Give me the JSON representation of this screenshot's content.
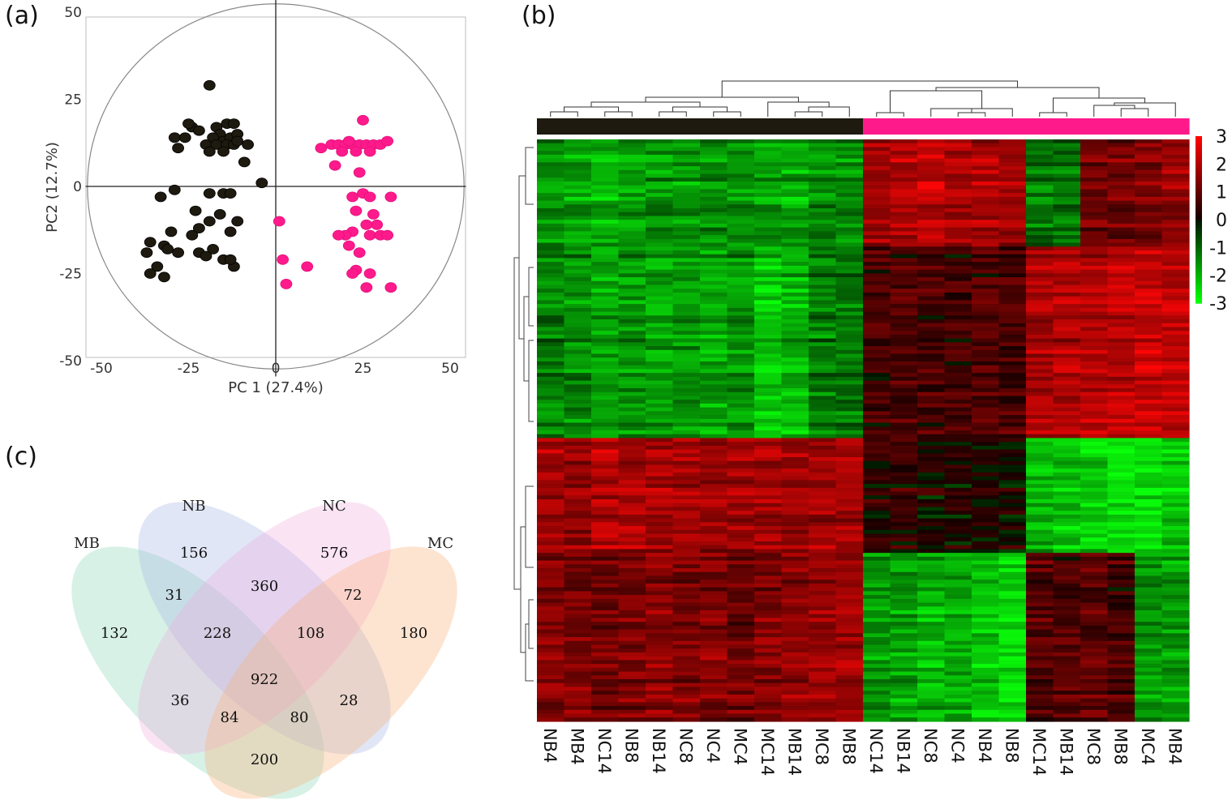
{
  "panels": {
    "a": "(a)",
    "b": "(b)",
    "c": "(c)"
  },
  "colors": {
    "group1": "#1e1a0f",
    "group2": "#ff1a8c",
    "hm_high": "#ff1a1a",
    "hm_low": "#1aff1a",
    "hm_mid": "#000000"
  },
  "chart_data": [
    {
      "type": "scatter",
      "title": "",
      "xlabel": "PC 1 (27.4%)",
      "ylabel": "PC2 (12.7%)",
      "xlim": [
        -55,
        55
      ],
      "ylim": [
        -55,
        55
      ],
      "xticks": [
        "-50",
        "-25",
        "0",
        "25",
        "50"
      ],
      "xtick_values": [
        -50,
        -25,
        0,
        25,
        50
      ],
      "yticks": [
        "50",
        "25",
        "0",
        "-25",
        "-50"
      ],
      "ytick_values": [
        50,
        25,
        0,
        -25,
        -50
      ],
      "ellipse_radius": 54,
      "series": [
        {
          "name": "group1",
          "color": "#1e1a0f",
          "points": [
            [
              -19,
              29
            ],
            [
              -24,
              17
            ],
            [
              -25,
              18
            ],
            [
              -22,
              16
            ],
            [
              -17,
              17
            ],
            [
              -14,
              18
            ],
            [
              -12,
              18
            ],
            [
              -16,
              15
            ],
            [
              -15,
              13
            ],
            [
              -13,
              14
            ],
            [
              -11,
              15
            ],
            [
              -18,
              14
            ],
            [
              -20,
              12
            ],
            [
              -17,
              12
            ],
            [
              -14,
              12
            ],
            [
              -12,
              12
            ],
            [
              -29,
              14
            ],
            [
              -26,
              14
            ],
            [
              -28,
              11
            ],
            [
              -19,
              10
            ],
            [
              -15,
              10
            ],
            [
              -11,
              13
            ],
            [
              -8,
              12
            ],
            [
              -9,
              7
            ],
            [
              -4,
              1
            ],
            [
              -29,
              -1
            ],
            [
              -33,
              -3
            ],
            [
              -19,
              -2
            ],
            [
              -15,
              -2
            ],
            [
              -13,
              -2
            ],
            [
              -16,
              -8
            ],
            [
              -23,
              -7
            ],
            [
              -19,
              -10
            ],
            [
              -11,
              -10
            ],
            [
              -22,
              -12
            ],
            [
              -13,
              -13
            ],
            [
              -30,
              -13
            ],
            [
              -36,
              -16
            ],
            [
              -32,
              -17
            ],
            [
              -37,
              -19
            ],
            [
              -31,
              -18
            ],
            [
              -22,
              -19
            ],
            [
              -18,
              -18
            ],
            [
              -15,
              -21
            ],
            [
              -12,
              -23
            ],
            [
              -34,
              -23
            ],
            [
              -36,
              -25
            ],
            [
              -32,
              -26
            ],
            [
              -28,
              -19
            ],
            [
              -20,
              -20
            ],
            [
              -13,
              -21
            ],
            [
              -24,
              -14
            ]
          ]
        },
        {
          "name": "group2",
          "color": "#ff1a8c",
          "points": [
            [
              25,
              19
            ],
            [
              13,
              11
            ],
            [
              16,
              12
            ],
            [
              18,
              12
            ],
            [
              20,
              12
            ],
            [
              22,
              12
            ],
            [
              24,
              12
            ],
            [
              26,
              12
            ],
            [
              28,
              12
            ],
            [
              30,
              12
            ],
            [
              32,
              13
            ],
            [
              21,
              13
            ],
            [
              23,
              10
            ],
            [
              27,
              10
            ],
            [
              19,
              10
            ],
            [
              17,
              6
            ],
            [
              24,
              4
            ],
            [
              25,
              -2
            ],
            [
              22,
              -3
            ],
            [
              27,
              -3
            ],
            [
              33,
              -3
            ],
            [
              23,
              -7
            ],
            [
              28,
              -8
            ],
            [
              29,
              -11
            ],
            [
              26,
              -11
            ],
            [
              22,
              -13
            ],
            [
              20,
              -14
            ],
            [
              18,
              -14
            ],
            [
              27,
              -14
            ],
            [
              30,
              -14
            ],
            [
              32,
              -14
            ],
            [
              21,
              -17
            ],
            [
              23,
              -24
            ],
            [
              22,
              -25
            ],
            [
              27,
              -25
            ],
            [
              26,
              -29
            ],
            [
              33,
              -29
            ],
            [
              1,
              -10
            ],
            [
              2,
              -21
            ],
            [
              9,
              -23
            ],
            [
              3,
              -28
            ],
            [
              24,
              -19
            ]
          ]
        }
      ]
    },
    {
      "type": "heatmap",
      "columns": [
        "NB4",
        "MB4",
        "NC14",
        "NB8",
        "NB14",
        "NC8",
        "NC4",
        "MC4",
        "MC14",
        "MB14",
        "MC8",
        "MB8",
        "NC14",
        "NB14",
        "NC8",
        "NC4",
        "NB4",
        "NB8",
        "MC14",
        "MB14",
        "MC8",
        "MB8",
        "MC4",
        "MB4"
      ],
      "column_groups": [
        "group1",
        "group1",
        "group1",
        "group1",
        "group1",
        "group1",
        "group1",
        "group1",
        "group1",
        "group1",
        "group1",
        "group1",
        "group2",
        "group2",
        "group2",
        "group2",
        "group2",
        "group2",
        "group2",
        "group2",
        "group2",
        "group2",
        "group2",
        "group2"
      ],
      "colorbar": {
        "min": -3,
        "max": 3,
        "ticks": [
          "3",
          "2",
          "1",
          "0",
          "-1",
          "-2",
          "-3"
        ],
        "tick_values": [
          3,
          2,
          1,
          0,
          -1,
          -2,
          -3
        ]
      },
      "row_blocks": [
        {
          "rows": 28,
          "values": [
            -1.6,
            -1.8,
            -2,
            -1.7,
            -1.6,
            -1.7,
            -1.5,
            -1.7,
            -1.8,
            -1.9,
            -1.6,
            -1.5,
            1.8,
            2.0,
            2.2,
            1.9,
            1.9,
            1.8,
            -1.2,
            -1.3,
            1.0,
            1.2,
            1.3,
            1.6
          ]
        },
        {
          "rows": 50,
          "values": [
            -1.3,
            -1.5,
            -1.8,
            -1.6,
            -1.7,
            -1.6,
            -1.8,
            -1.5,
            -2.2,
            -2.0,
            -1.3,
            -1.2,
            0.6,
            0.7,
            0.6,
            0.5,
            0.7,
            0.6,
            1.8,
            1.9,
            2.0,
            2.1,
            2.2,
            2.0
          ]
        },
        {
          "rows": 30,
          "values": [
            1.8,
            1.6,
            2.0,
            1.9,
            1.8,
            1.9,
            1.7,
            1.8,
            1.8,
            1.7,
            1.8,
            1.8,
            0.3,
            0.4,
            0.1,
            0.2,
            0.1,
            0.2,
            -2.0,
            -2.2,
            -2.4,
            -2.5,
            -2.7,
            -2.3
          ]
        },
        {
          "rows": 44,
          "values": [
            1.4,
            1.3,
            1.2,
            1.3,
            1.5,
            1.3,
            1.4,
            1.2,
            1.4,
            1.5,
            1.6,
            1.7,
            -1.7,
            -1.8,
            -2.0,
            -1.8,
            -2.2,
            -2.4,
            0.8,
            0.7,
            0.9,
            0.6,
            -1.6,
            -1.7
          ]
        }
      ]
    },
    {
      "type": "venn",
      "sets": [
        "MB",
        "NB",
        "NC",
        "MC"
      ],
      "regions": {
        "MB_only": "132",
        "NB_only": "156",
        "NC_only": "576",
        "MC_only": "180",
        "MB_NB": "31",
        "NB_NC": "360",
        "NC_MC": "72",
        "MB_MC": "200",
        "MB_NB_NC": "228",
        "NB_NC_MC": "108",
        "MB_NC": "36",
        "NB_MC": "28",
        "MB_NC_MC": "84",
        "MB_NB_MC": "80",
        "all": "922"
      }
    }
  ]
}
